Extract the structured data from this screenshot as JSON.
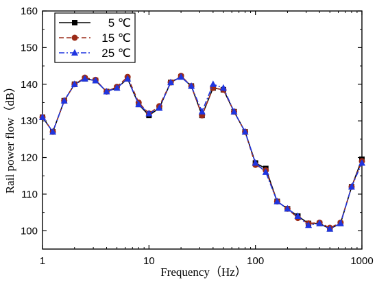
{
  "chart_data": {
    "type": "line",
    "xlabel": "Frequency（Hz）",
    "ylabel": "Rail power flow（dB）",
    "xscale": "log",
    "xlim": [
      1,
      1000
    ],
    "ylim": [
      95,
      160
    ],
    "yticks": [
      100,
      110,
      120,
      130,
      140,
      150,
      160
    ],
    "xticks": [
      1,
      10,
      100,
      1000
    ],
    "xtick_labels": [
      "1",
      "10",
      "100",
      "1000"
    ],
    "grid": false,
    "legend_position": "top-left",
    "x": [
      1,
      1.25,
      1.6,
      2,
      2.5,
      3.15,
      4,
      5,
      6.3,
      8,
      10,
      12.5,
      16,
      20,
      25,
      31.5,
      40,
      50,
      63,
      80,
      100,
      125,
      160,
      200,
      250,
      315,
      400,
      500,
      630,
      800,
      1000
    ],
    "series": [
      {
        "name": "5 ℃",
        "color": "#000000",
        "marker": "square",
        "dash": "solid",
        "values": [
          131,
          127,
          135.5,
          140,
          141.5,
          141,
          138,
          139,
          141.5,
          134.5,
          131.5,
          133.5,
          140.5,
          142,
          139.5,
          131.5,
          139,
          138.5,
          132.5,
          127,
          118.5,
          117,
          108,
          106,
          104,
          102,
          102,
          100.5,
          102,
          112,
          119.5
        ]
      },
      {
        "name": "15 ℃",
        "color": "#9b2b18",
        "marker": "circle",
        "dash": "dash",
        "values": [
          131,
          127,
          135.5,
          140,
          141.8,
          141.2,
          138,
          139.3,
          142,
          135,
          132,
          134,
          140.5,
          142.3,
          139.5,
          131.5,
          139,
          138.5,
          132.5,
          127,
          118,
          116.5,
          108,
          106,
          103.5,
          102,
          102.2,
          100.8,
          102.2,
          112,
          119
        ]
      },
      {
        "name": "25 ℃",
        "color": "#1f35e0",
        "marker": "triangle",
        "dash": "dashdot",
        "values": [
          131,
          127,
          135.5,
          140,
          141.5,
          141,
          138,
          139,
          141.5,
          134.5,
          132,
          133.5,
          140.5,
          142,
          139.5,
          132.5,
          140,
          139,
          132.5,
          127,
          118.5,
          116,
          108,
          106,
          104,
          101.5,
          102,
          100.5,
          102,
          112,
          118.5
        ]
      }
    ]
  }
}
